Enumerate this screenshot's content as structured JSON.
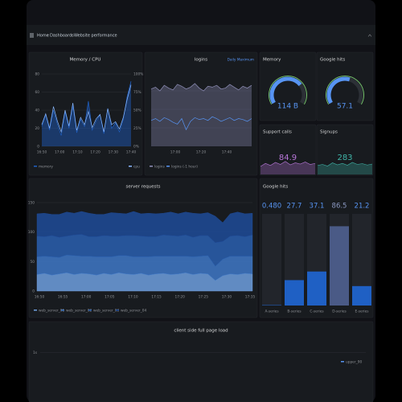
{
  "nav": {
    "breadcrumb": [
      "Home",
      "Dashboards",
      "Website performance"
    ]
  },
  "panels": {
    "memory_cpu": {
      "type": "line",
      "title": "Memory / CPU",
      "xticks": [
        "16:50",
        "17:00",
        "17:10",
        "17:20",
        "17:30",
        "17:40"
      ],
      "ylim": [
        0,
        80
      ],
      "yticks": [
        0,
        20,
        40,
        60,
        80
      ],
      "y2lim": [
        0,
        100
      ],
      "y2ticks": [
        {
          "value": 0,
          "label": "0%"
        },
        {
          "value": 25,
          "label": "25%"
        },
        {
          "value": 50,
          "label": "50%"
        },
        {
          "value": 75,
          "label": "75%"
        },
        {
          "value": 100,
          "label": "100%"
        }
      ],
      "series": [
        {
          "name": "memory",
          "color": "#1f60c4",
          "values": [
            22,
            35,
            18,
            40,
            25,
            12,
            38,
            20,
            45,
            15,
            30,
            22,
            50,
            18,
            28,
            35,
            14,
            42,
            20,
            26,
            16,
            30,
            55,
            72
          ]
        },
        {
          "name": "cpu",
          "color": "#8ab8ff",
          "axis": "y2",
          "values": [
            30,
            45,
            25,
            55,
            35,
            20,
            50,
            28,
            60,
            22,
            40,
            30,
            48,
            26,
            38,
            44,
            20,
            52,
            30,
            34,
            24,
            40,
            65,
            85
          ]
        }
      ]
    },
    "logins": {
      "type": "line",
      "title": "logins",
      "link": "Daily Maximum",
      "xticks": [
        "17:00",
        "17:20",
        "17:40"
      ],
      "ylim": [
        0,
        80
      ],
      "series": [
        {
          "name": "logins",
          "color": "#8f8fb8",
          "values": [
            62,
            64,
            60,
            66,
            63,
            61,
            67,
            65,
            62,
            64,
            68,
            63,
            60,
            65,
            64,
            66,
            62,
            63,
            67,
            64,
            61,
            65,
            63,
            66
          ]
        },
        {
          "name": "logins (-1 hour)",
          "color": "#5794f2",
          "values": [
            28,
            30,
            27,
            31,
            29,
            26,
            24,
            30,
            18,
            27,
            31,
            29,
            30,
            28,
            32,
            30,
            27,
            29,
            31,
            28,
            30,
            29,
            27,
            30
          ]
        }
      ]
    },
    "memory": {
      "type": "gauge",
      "title": "Memory",
      "value": 114,
      "value_label": "114 B",
      "ylim": [
        0,
        160
      ],
      "color": "#5794f2"
    },
    "google_hits": {
      "type": "gauge",
      "title": "Google hits",
      "value": 57.1,
      "ylim": [
        0,
        100
      ],
      "color": "#5794f2"
    },
    "support_calls": {
      "type": "stat",
      "title": "Support calls",
      "value": 84.9,
      "color": "#b877d9",
      "ylim": [
        0,
        100
      ],
      "values": [
        40,
        55,
        45,
        60,
        50,
        65,
        48,
        58,
        52,
        62,
        50,
        55
      ]
    },
    "signups": {
      "type": "stat",
      "title": "Signups",
      "value": 283,
      "color": "#3fb5a8",
      "ylim": [
        0,
        100
      ],
      "values": [
        45,
        50,
        42,
        58,
        48,
        55,
        46,
        60,
        50,
        54,
        47,
        52
      ]
    },
    "server_requests": {
      "type": "stacked_area",
      "title": "server requests",
      "xticks": [
        "16:50",
        "16:55",
        "17:00",
        "17:05",
        "17:10",
        "17:15",
        "17:20",
        "17:25",
        "17:30",
        "17:35"
      ],
      "ylim": [
        0,
        150
      ],
      "yticks": [
        0,
        50,
        100,
        150
      ],
      "series": [
        {
          "name": "web_server_01",
          "color": "#6e9fdf",
          "values": [
            28,
            30,
            27,
            29,
            31,
            28,
            30,
            29,
            27,
            30,
            28,
            31,
            29,
            28,
            30,
            27,
            29,
            30,
            28,
            29,
            31,
            28,
            30,
            29,
            18,
            26,
            29,
            28,
            30,
            29
          ]
        },
        {
          "name": "web_server_02",
          "color": "#3f78c8",
          "values": [
            30,
            29,
            31,
            28,
            30,
            32,
            29,
            30,
            31,
            28,
            30,
            29,
            31,
            30,
            28,
            31,
            30,
            29,
            31,
            30,
            28,
            30,
            29,
            31,
            24,
            28,
            30,
            31,
            29,
            30
          ]
        },
        {
          "name": "web_server_03",
          "color": "#2a5fb0",
          "values": [
            35,
            33,
            36,
            34,
            32,
            35,
            37,
            33,
            34,
            36,
            35,
            33,
            34,
            36,
            35,
            34,
            33,
            36,
            35,
            34,
            36,
            33,
            35,
            34,
            40,
            30,
            34,
            35,
            33,
            36
          ]
        },
        {
          "name": "web_server_04",
          "color": "#1f4b99",
          "values": [
            38,
            40,
            36,
            39,
            41,
            37,
            39,
            40,
            38,
            36,
            40,
            39,
            37,
            41,
            38,
            40,
            39,
            37,
            40,
            38,
            39,
            41,
            37,
            39,
            45,
            32,
            38,
            40,
            39,
            37
          ]
        }
      ]
    },
    "google_hits_bars": {
      "type": "bar_gauge",
      "title": "Google hits",
      "ylim": [
        0,
        100
      ],
      "categories": [
        "A-series",
        "B-series",
        "C-series",
        "D-series",
        "E-series"
      ],
      "values": [
        0.48,
        27.7,
        37.1,
        86.5,
        21.2
      ],
      "value_labels": [
        "0.480",
        "27.7",
        "37.1",
        "86.5",
        "21.2"
      ],
      "colors": [
        "#1f60c4",
        "#1f60c4",
        "#1f60c4",
        "#4a5a86",
        "#1f60c4"
      ]
    },
    "page_load": {
      "type": "bar",
      "title": "client side full page load",
      "ylim": [
        0,
        1.5
      ],
      "yticks": [
        {
          "value": 1,
          "label": "1s"
        }
      ],
      "series": [
        {
          "name": "upper_90",
          "color": "#5794f2"
        }
      ]
    }
  }
}
